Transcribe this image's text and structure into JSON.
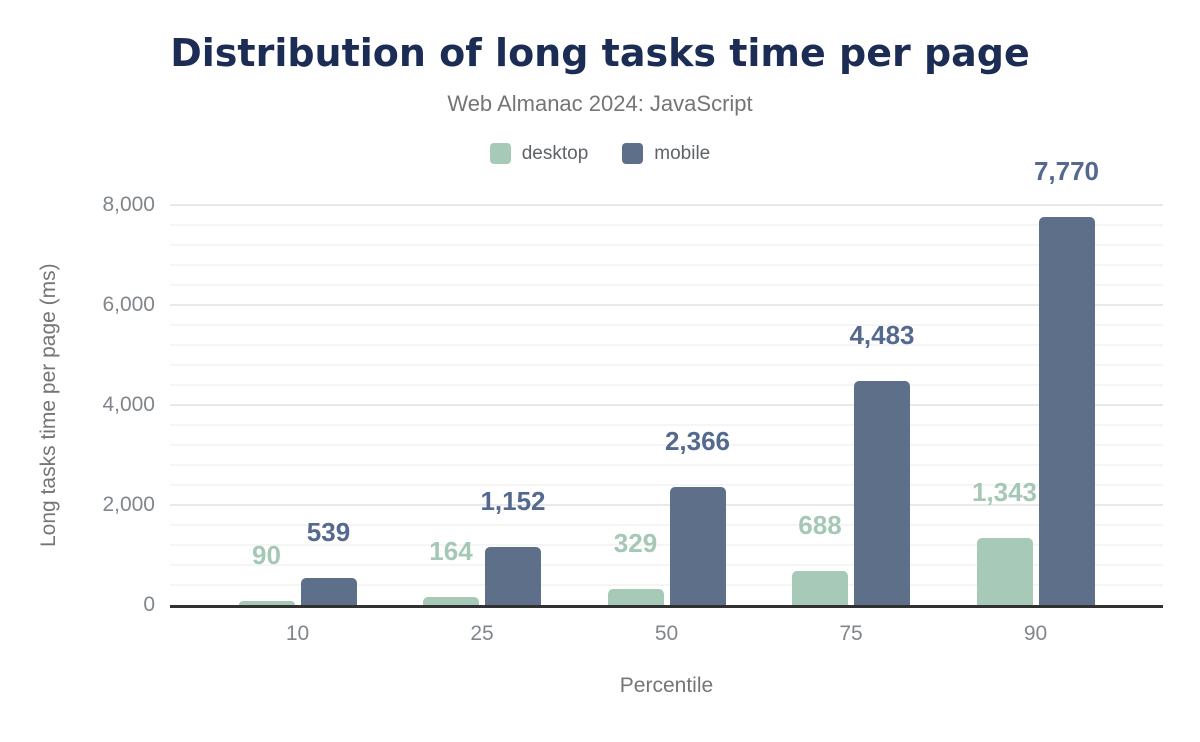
{
  "header": {
    "title": "Distribution of long tasks time per page",
    "subtitle": "Web Almanac 2024: JavaScript"
  },
  "legend": {
    "items": [
      {
        "label": "desktop",
        "color": "#a7c9b7"
      },
      {
        "label": "mobile",
        "color": "#5e7089"
      }
    ]
  },
  "chart_data": {
    "type": "bar",
    "title": "Distribution of long tasks time per page",
    "subtitle": "Web Almanac 2024: JavaScript",
    "categories": [
      "10",
      "25",
      "50",
      "75",
      "90"
    ],
    "series": [
      {
        "name": "desktop",
        "color": "#a7c9b7",
        "label_color": "#a5c8b6",
        "values": [
          90,
          164,
          329,
          688,
          1343
        ],
        "value_labels": [
          "90",
          "164",
          "329",
          "688",
          "1,343"
        ]
      },
      {
        "name": "mobile",
        "color": "#5e7089",
        "label_color": "#54698f",
        "values": [
          539,
          1152,
          2366,
          4483,
          7770
        ],
        "value_labels": [
          "539",
          "1,152",
          "2,366",
          "4,483",
          "7,770"
        ]
      }
    ],
    "xlabel": "Percentile",
    "ylabel": "Long tasks time per page (ms)",
    "ylim": [
      0,
      8000
    ],
    "ytick_step": 2000,
    "ytick_labels": [
      "0",
      "2,000",
      "4,000",
      "6,000",
      "8,000"
    ],
    "minor_grid_step": 400,
    "grid": true,
    "legend_position": "top"
  },
  "colors": {
    "title": "#1b2c55",
    "subtitle": "#757575",
    "axis_text": "#80868b",
    "axis_title": "#757575",
    "baseline": "#313131",
    "grid_major": "#e9e9e9",
    "grid_minor": "#f5f5f5",
    "background": "#ffffff",
    "desktop": "#a7c9b7",
    "mobile": "#5e7089"
  }
}
